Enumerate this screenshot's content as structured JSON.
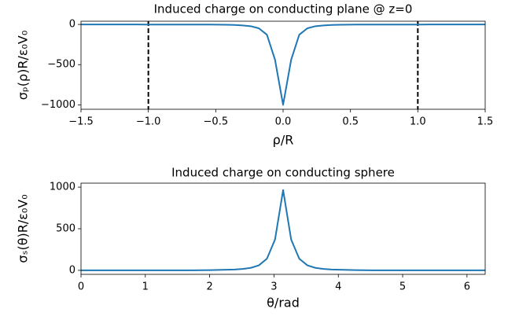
{
  "chart_data": [
    {
      "type": "line",
      "title": "Induced charge on conducting plane @ z=0",
      "xlabel": "ρ/R",
      "ylabel": "σₚ(ρ)R/ε₀V₀",
      "x": [
        -1.5,
        -1.44,
        -1.38,
        -1.32,
        -1.26,
        -1.2,
        -1.14,
        -1.08,
        -1.02,
        -0.96,
        -0.9,
        -0.84,
        -0.78,
        -0.72,
        -0.66,
        -0.6,
        -0.54,
        -0.48,
        -0.42,
        -0.36,
        -0.3,
        -0.24,
        -0.18,
        -0.12,
        -0.06,
        0,
        0.06,
        0.12,
        0.18,
        0.24,
        0.3,
        0.36,
        0.42,
        0.48,
        0.54,
        0.6,
        0.66,
        0.72,
        0.78,
        0.84,
        0.9,
        0.96,
        1.02,
        1.08,
        1.14,
        1.2,
        1.26,
        1.32,
        1.38,
        1.44,
        1.5
      ],
      "series": [
        {
          "color": "#1f77b4",
          "values": [
            0,
            0,
            0,
            0,
            0,
            0,
            0,
            0,
            -1,
            -1,
            -1,
            -1,
            -1,
            -1,
            -1,
            -2,
            -2,
            -3,
            -4,
            -7,
            -12,
            -22,
            -48,
            -128,
            -438,
            -1000,
            -438,
            -128,
            -48,
            -22,
            -12,
            -7,
            -4,
            -3,
            -2,
            -2,
            -1,
            -1,
            -1,
            -1,
            -1,
            -1,
            -1,
            0,
            0,
            0,
            0,
            0,
            0,
            0,
            0
          ]
        }
      ],
      "vlines": [
        -1,
        1
      ],
      "vline_color": "#000000",
      "xlim": [
        -1.5,
        1.5
      ],
      "ylim": [
        -1055,
        40
      ],
      "xticks": [
        {
          "value": -1.5,
          "label": "−1.5"
        },
        {
          "value": -1.0,
          "label": "−1.0"
        },
        {
          "value": -0.5,
          "label": "−0.5"
        },
        {
          "value": 0,
          "label": "0.0"
        },
        {
          "value": 0.5,
          "label": "0.5"
        },
        {
          "value": 1.0,
          "label": "1.0"
        },
        {
          "value": 1.5,
          "label": "1.5"
        }
      ],
      "yticks": [
        0,
        {
          "value": -500,
          "label": "−500"
        },
        {
          "value": -1000,
          "label": "−1000"
        }
      ]
    },
    {
      "type": "line",
      "title": "Induced charge on conducting sphere",
      "xlabel": "θ/rad",
      "ylabel": "σₛ(θ)R/ε₀V₀",
      "x": [
        0,
        0.126,
        0.251,
        0.377,
        0.503,
        0.628,
        0.754,
        0.88,
        1.005,
        1.131,
        1.257,
        1.382,
        1.508,
        1.634,
        1.759,
        1.885,
        2.011,
        2.136,
        2.262,
        2.388,
        2.513,
        2.639,
        2.765,
        2.89,
        3.016,
        3.142,
        3.267,
        3.393,
        3.519,
        3.644,
        3.77,
        3.896,
        4.021,
        4.147,
        4.273,
        4.398,
        4.524,
        4.65,
        4.775,
        4.901,
        5.027,
        5.152,
        5.278,
        5.404,
        5.529,
        5.655,
        5.781,
        5.906,
        6.032,
        6.158,
        6.283
      ],
      "series": [
        {
          "color": "#1f77b4",
          "values": [
            0,
            0,
            0,
            0,
            0,
            0,
            0,
            0,
            0,
            0,
            1,
            1,
            1,
            1,
            1,
            2,
            3,
            5,
            7,
            10,
            17,
            30,
            60,
            140,
            370,
            965,
            370,
            140,
            60,
            30,
            17,
            10,
            7,
            5,
            3,
            2,
            1,
            1,
            1,
            1,
            1,
            0,
            0,
            0,
            0,
            0,
            0,
            0,
            0,
            0,
            0
          ]
        }
      ],
      "xlim": [
        0,
        6.283
      ],
      "ylim": [
        -48,
        1048
      ],
      "xticks": [
        0,
        1,
        2,
        3,
        4,
        5,
        6
      ],
      "yticks": [
        0,
        500,
        1000
      ]
    }
  ]
}
